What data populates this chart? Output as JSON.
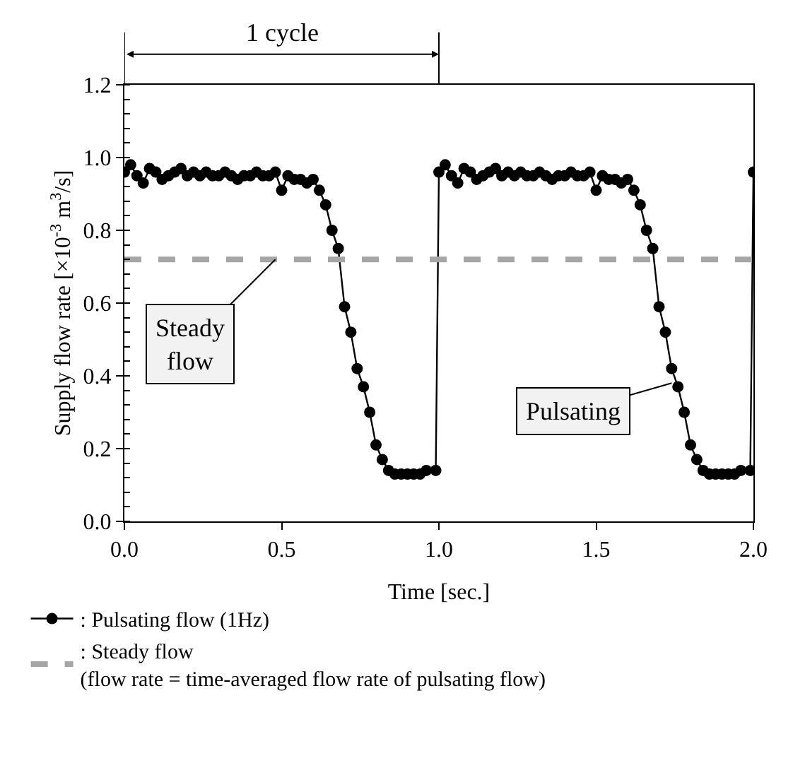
{
  "chart_data": {
    "type": "line",
    "xlabel": "Time [sec.]",
    "ylabel": "Supply flow rate [×10$^{-3}$ m$^{3}$/s]",
    "xlim": [
      0,
      2
    ],
    "xticks": [
      {
        "value": 0,
        "label": "0.0"
      },
      {
        "value": 0.5,
        "label": "0.5"
      },
      {
        "value": 1,
        "label": "1.0"
      },
      {
        "value": 1.5,
        "label": "1.5"
      },
      {
        "value": 2,
        "label": "2.0"
      }
    ],
    "ylim": [
      0,
      1.2
    ],
    "yticks": [
      {
        "value": 0,
        "label": "0.0"
      },
      {
        "value": 0.2,
        "label": "0.2"
      },
      {
        "value": 0.4,
        "label": "0.4"
      },
      {
        "value": 0.6,
        "label": "0.6"
      },
      {
        "value": 0.8,
        "label": "0.8"
      },
      {
        "value": 1,
        "label": "1.0"
      },
      {
        "value": 1.2,
        "label": "1.2"
      }
    ],
    "legend": "bottom left",
    "series": [
      {
        "name": ": Pulsating flow (1Hz)",
        "color": "#000000",
        "marker": "circle",
        "line_style": "solid",
        "x": [
          0,
          0.02,
          0.04,
          0.06,
          0.08,
          0.1,
          0.12,
          0.14,
          0.16,
          0.18,
          0.2,
          0.22,
          0.24,
          0.26,
          0.28,
          0.3,
          0.32,
          0.34,
          0.36,
          0.38,
          0.4,
          0.42,
          0.44,
          0.46,
          0.48,
          0.5,
          0.52,
          0.54,
          0.56,
          0.58,
          0.6,
          0.62,
          0.64,
          0.66,
          0.68,
          0.7,
          0.72,
          0.74,
          0.76,
          0.78,
          0.8,
          0.82,
          0.84,
          0.86,
          0.88,
          0.9,
          0.92,
          0.94,
          0.96,
          0.99,
          1.0,
          1.02,
          1.04,
          1.06,
          1.08,
          1.1,
          1.12,
          1.14,
          1.16,
          1.18,
          1.2,
          1.22,
          1.24,
          1.26,
          1.28,
          1.3,
          1.32,
          1.34,
          1.36,
          1.38,
          1.4,
          1.42,
          1.44,
          1.46,
          1.48,
          1.5,
          1.52,
          1.54,
          1.56,
          1.58,
          1.6,
          1.62,
          1.64,
          1.66,
          1.68,
          1.7,
          1.72,
          1.74,
          1.76,
          1.78,
          1.8,
          1.82,
          1.84,
          1.86,
          1.88,
          1.9,
          1.92,
          1.94,
          1.96,
          1.99,
          2.0
        ],
        "values": [
          0.96,
          0.98,
          0.95,
          0.93,
          0.97,
          0.96,
          0.94,
          0.95,
          0.96,
          0.97,
          0.95,
          0.96,
          0.95,
          0.96,
          0.95,
          0.95,
          0.96,
          0.95,
          0.94,
          0.95,
          0.95,
          0.96,
          0.95,
          0.95,
          0.96,
          0.91,
          0.95,
          0.94,
          0.94,
          0.93,
          0.94,
          0.91,
          0.87,
          0.8,
          0.75,
          0.59,
          0.52,
          0.42,
          0.37,
          0.3,
          0.21,
          0.17,
          0.14,
          0.13,
          0.13,
          0.13,
          0.13,
          0.13,
          0.14,
          0.14,
          0.96,
          0.98,
          0.95,
          0.93,
          0.97,
          0.96,
          0.94,
          0.95,
          0.96,
          0.97,
          0.95,
          0.96,
          0.95,
          0.96,
          0.95,
          0.95,
          0.96,
          0.95,
          0.94,
          0.95,
          0.95,
          0.96,
          0.95,
          0.95,
          0.96,
          0.91,
          0.95,
          0.94,
          0.94,
          0.93,
          0.94,
          0.91,
          0.87,
          0.8,
          0.75,
          0.59,
          0.52,
          0.42,
          0.37,
          0.3,
          0.21,
          0.17,
          0.14,
          0.13,
          0.13,
          0.13,
          0.13,
          0.13,
          0.14,
          0.14,
          0.96
        ]
      },
      {
        "name": ": Steady flow\n(flow rate = time-averaged flow rate of pulsating flow)",
        "color": "#a6a6a6",
        "marker": "none",
        "line_style": "dashed",
        "x": [
          0,
          2
        ],
        "values": [
          0.72,
          0.72
        ]
      }
    ],
    "annotations": [
      "1 cycle",
      {
        "text": "Steady\nflow",
        "x": 0.48,
        "y": 0.72
      },
      {
        "text": "Pulsating",
        "x": 1.74,
        "y": 0.38
      }
    ]
  }
}
